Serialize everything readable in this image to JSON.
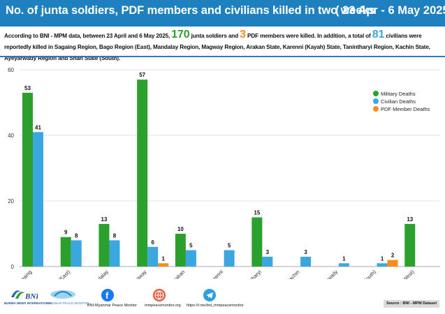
{
  "header": {
    "title": "No. of junta soldiers, PDF members and civilians killed in two weeks",
    "date_range": "( 23 Apr - 6 May 2025 )"
  },
  "description": {
    "part1": "According to BNI - MPM data, between 23 April and 6 May 2025,",
    "num_junta": "170",
    "part2": "junta soldiers and",
    "num_pdf": "3",
    "part3": "PDF members were killed. In addition, a total of",
    "num_civ": "81",
    "part4": "civilians were reportedly killed in Sagaing Region, Bago Region (East), Mandalay Region, Magway Region, Arakan State, Karenni (Kayah) State, Tanintharyi Region, Kachin State, Ayeyarwady Region and Shan State (South)."
  },
  "colors": {
    "military": "#2ca02c",
    "civilian": "#3aa7e0",
    "pdf": "#ff8c1a",
    "header_bg": "#1f80bf"
  },
  "chart_data": {
    "type": "bar",
    "categories": [
      "Sagaing",
      "Bago (East)",
      "Mandalay",
      "Magway",
      "Arakan",
      "Karenni",
      "Tanintharyi",
      "Kachin",
      "Ayeyarwady",
      "Shan (South)",
      "Bago (West)"
    ],
    "series": [
      {
        "name": "Military Deaths",
        "values": [
          53,
          9,
          13,
          57,
          10,
          null,
          15,
          null,
          null,
          null,
          13
        ]
      },
      {
        "name": "Civilian Deaths",
        "values": [
          41,
          8,
          8,
          6,
          5,
          5,
          3,
          3,
          1,
          1,
          null
        ]
      },
      {
        "name": "PDF Member Deaths",
        "values": [
          null,
          null,
          null,
          1,
          null,
          null,
          null,
          null,
          null,
          2,
          null
        ]
      }
    ],
    "ylim": [
      0,
      60
    ],
    "yticks": [
      0,
      20,
      40,
      60
    ],
    "grid": true,
    "legend_position": "top-right"
  },
  "footer": {
    "org1": "BURMA NEWS INTERNATIONAL",
    "org2": "MYANMAR PEACE MONITOR",
    "facebook": "BNI-Myanmar Peace Monitor",
    "website": "mmpeacemonitor.org",
    "telegram": "https://t.me/bni_mmpeacemonitor",
    "source": "Source : BNI - MPM Dataset"
  }
}
